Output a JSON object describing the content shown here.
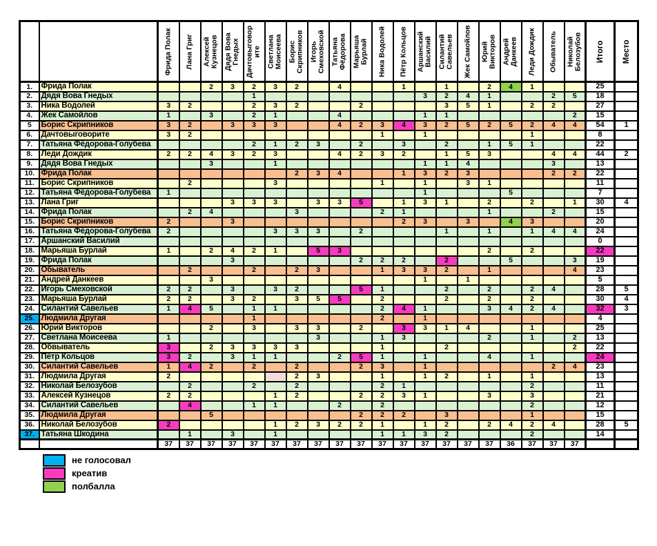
{
  "colors": {
    "row_yellow": "#ffffcc",
    "row_green": "#d9f1d2",
    "row_orange": "#fabf8f",
    "creative": "#f73bbe",
    "half_point": "#92d050",
    "no_vote": "#00b0f0",
    "pink_blank": "#f2dcdb",
    "grid": "#000000"
  },
  "columns": [
    "Фрида Полак",
    "Лана Григ",
    "Алексей Кузнецов",
    "Дядя Вова Гнедых",
    "Дачтовыговорите",
    "Светлана Моисеева",
    "Борис Скрипников",
    "Игорь Смеховской",
    "Татьяна Фёдорова",
    "Марьяша Бурлай",
    "Ника Водолей",
    "Пётр Кольцов",
    "Аршанский Василий",
    "Силантий Савельев",
    "Жек Самойлов",
    "Юрий Викторов",
    "Андрей Данкеев",
    "Леди Дождик",
    "Обыватель",
    "Николай Белозубов"
  ],
  "itogo_label": "Итого",
  "mesto_label": "Место",
  "rows": [
    {
      "num": "1.",
      "name": "Фрида Полак",
      "color": "y",
      "cells": [
        "",
        "",
        "2",
        "3",
        "2",
        "3",
        "2",
        "",
        "4",
        "",
        "",
        "1",
        "",
        "1",
        "",
        "2",
        "4",
        "1",
        "",
        ""
      ],
      "marks": {
        "16": "half"
      },
      "itogo": "25",
      "mesto": ""
    },
    {
      "num": "2.",
      "name": "Дядя Вова Гнедых",
      "color": "g",
      "cells": [
        "",
        "",
        "",
        "",
        "1",
        "",
        "",
        "",
        "",
        "",
        "",
        "",
        "3",
        "2",
        "4",
        "1",
        "",
        "",
        "2",
        "5"
      ],
      "marks": {},
      "itogo": "18",
      "mesto": ""
    },
    {
      "num": "3.",
      "name": "Ника Водолей",
      "color": "y",
      "cells": [
        "3",
        "2",
        "",
        "",
        "2",
        "3",
        "2",
        "",
        "",
        "2",
        "",
        "",
        "",
        "3",
        "5",
        "1",
        "",
        "2",
        "2",
        ""
      ],
      "marks": {},
      "itogo": "27",
      "mesto": ""
    },
    {
      "num": "4.",
      "name": "Жек Самойлов",
      "color": "g",
      "cells": [
        "1",
        "",
        "3",
        "",
        "2",
        "1",
        "",
        "",
        "4",
        "",
        "",
        "",
        "1",
        "1",
        "",
        "",
        "",
        "",
        "",
        "2"
      ],
      "marks": {},
      "itogo": "15",
      "mesto": ""
    },
    {
      "num": "5",
      "name": "Борис Скрипников",
      "color": "o",
      "cells": [
        "3",
        "2",
        "",
        "3",
        "3",
        "3",
        "",
        "",
        "4",
        "2",
        "3",
        "4",
        "3",
        "2",
        "5",
        "2",
        "5",
        "2",
        "4",
        "4"
      ],
      "marks": {
        "11": "creative"
      },
      "itogo": "54",
      "mesto": "1"
    },
    {
      "num": "6.",
      "name": "Дачтовыговорите",
      "color": "y",
      "cells": [
        "3",
        "2",
        "",
        "",
        "",
        "",
        "",
        "",
        "",
        "",
        "1",
        "",
        "1",
        "",
        "",
        "",
        "",
        "1",
        "",
        ""
      ],
      "marks": {},
      "itogo": "8",
      "mesto": ""
    },
    {
      "num": "7.",
      "name": "Татьяна Фёдорова-Голубева",
      "color": "g",
      "cells": [
        "",
        "",
        "",
        "",
        "2",
        "1",
        "2",
        "3",
        "",
        "2",
        "",
        "3",
        "",
        "2",
        "",
        "1",
        "5",
        "1",
        "",
        ""
      ],
      "marks": {},
      "itogo": "22",
      "mesto": ""
    },
    {
      "num": "8.",
      "name": "Леди Дождик",
      "color": "y",
      "cells": [
        "2",
        "2",
        "4",
        "3",
        "2",
        "3",
        "",
        "",
        "4",
        "2",
        "3",
        "2",
        "",
        "1",
        "5",
        "3",
        "",
        "",
        "4",
        "4"
      ],
      "marks": {},
      "itogo": "44",
      "mesto": "2"
    },
    {
      "num": "9.",
      "name": "Дядя Вова Гнедых",
      "color": "g",
      "cells": [
        "",
        "",
        "3",
        "",
        "",
        "1",
        "",
        "",
        "",
        "",
        "",
        "",
        "1",
        "1",
        "4",
        "",
        "",
        "",
        "3",
        ""
      ],
      "marks": {},
      "itogo": "13",
      "mesto": ""
    },
    {
      "num": "10.",
      "name": "Фрида Полак",
      "color": "o",
      "cells": [
        "",
        "",
        "",
        "",
        "",
        "",
        "2",
        "3",
        "4",
        "",
        "",
        "1",
        "3",
        "2",
        "3",
        "",
        "",
        "",
        "2",
        "2"
      ],
      "marks": {},
      "itogo": "22",
      "mesto": ""
    },
    {
      "num": "11.",
      "name": "Борис Скрипников",
      "color": "y",
      "cells": [
        "",
        "2",
        "",
        "",
        "",
        "3",
        "",
        "",
        "",
        "",
        "1",
        "",
        "1",
        "",
        "3",
        "1",
        "",
        "",
        "",
        ""
      ],
      "marks": {},
      "itogo": "11",
      "mesto": ""
    },
    {
      "num": "12.",
      "name": "Татьяна Фёдорова-Голубева",
      "color": "g",
      "cells": [
        "1",
        "",
        "",
        "",
        "",
        "",
        "",
        "",
        "",
        "",
        "",
        "",
        "1",
        "",
        "",
        "",
        "5",
        "",
        "",
        ""
      ],
      "marks": {},
      "itogo": "7",
      "mesto": ""
    },
    {
      "num": "13.",
      "name": "Лана Григ",
      "color": "y",
      "cells": [
        "",
        "",
        "",
        "3",
        "3",
        "3",
        "",
        "3",
        "3",
        "5",
        "",
        "1",
        "3",
        "1",
        "",
        "2",
        "",
        "2",
        "",
        "1"
      ],
      "marks": {
        "9": "creative"
      },
      "itogo": "30",
      "mesto": "4"
    },
    {
      "num": "14.",
      "name": "Фрида Полак",
      "color": "g",
      "cells": [
        "",
        "2",
        "4",
        "",
        "",
        "",
        "3",
        "",
        "",
        "",
        "2",
        "1",
        "",
        "",
        "",
        "1",
        "",
        "",
        "2",
        ""
      ],
      "marks": {},
      "itogo": "15",
      "mesto": ""
    },
    {
      "num": "15.",
      "name": "Борис Скрипников",
      "color": "o",
      "cells": [
        "2",
        "",
        "",
        "3",
        "",
        "",
        "",
        "",
        "",
        "",
        "",
        "2",
        "3",
        "",
        "3",
        "",
        "4",
        "3",
        "",
        ""
      ],
      "marks": {
        "16": "half"
      },
      "itogo": "20",
      "mesto": ""
    },
    {
      "num": "16.",
      "name": "Татьяна Фёдорова-Голубева",
      "color": "g",
      "cells": [
        "2",
        "",
        "",
        "",
        "",
        "3",
        "3",
        "3",
        "",
        "2",
        "",
        "",
        "",
        "1",
        "",
        "1",
        "",
        "1",
        "4",
        "4"
      ],
      "marks": {},
      "itogo": "24",
      "mesto": ""
    },
    {
      "num": "17.",
      "name": "Аршанский Василий",
      "color": "g",
      "cells": [
        "",
        "",
        "",
        "",
        "",
        "",
        "",
        "",
        "",
        "",
        "",
        "",
        "",
        "",
        "",
        "",
        "",
        "",
        "",
        ""
      ],
      "marks": {},
      "itogo": "0",
      "mesto": ""
    },
    {
      "num": "18.",
      "name": "Марьяша Бурлай",
      "color": "y",
      "cells": [
        "1",
        "",
        "2",
        "4",
        "2",
        "1",
        "",
        "5",
        "3",
        "",
        "",
        "",
        "",
        "",
        "",
        "2",
        "",
        "2",
        "",
        ""
      ],
      "marks": {
        "7": "creative",
        "8": "creative"
      },
      "itogo": "22",
      "itogo_mark": "creative",
      "mesto": ""
    },
    {
      "num": "19.",
      "name": "Фрида Полак",
      "color": "g",
      "cells": [
        "",
        "",
        "",
        "3",
        "",
        "",
        "",
        "",
        "",
        "2",
        "2",
        "2",
        "",
        "2",
        "",
        "",
        "5",
        "",
        "",
        "3"
      ],
      "marks": {
        "13": "creative"
      },
      "itogo": "19",
      "mesto": ""
    },
    {
      "num": "20.",
      "name": "Обыватель",
      "color": "o",
      "cells": [
        "",
        "2",
        "",
        "",
        "2",
        "",
        "2",
        "3",
        "",
        "",
        "1",
        "3",
        "3",
        "2",
        "",
        "1",
        "",
        "",
        "",
        "4"
      ],
      "marks": {},
      "itogo": "23",
      "mesto": ""
    },
    {
      "num": "21.",
      "name": "Андрей Данкеев",
      "color": "y",
      "cells": [
        "",
        "",
        "3",
        "",
        "",
        "",
        "",
        "",
        "",
        "",
        "",
        "",
        "1",
        "",
        "1",
        "",
        "",
        "",
        "",
        ""
      ],
      "marks": {},
      "itogo": "5",
      "mesto": ""
    },
    {
      "num": "22.",
      "name": "Игорь Смеховской",
      "color": "g",
      "cells": [
        "2",
        "2",
        "",
        "3",
        "",
        "3",
        "2",
        "",
        "",
        "5",
        "1",
        "",
        "",
        "2",
        "",
        "2",
        "",
        "2",
        "4",
        ""
      ],
      "marks": {
        "9": "creative"
      },
      "itogo": "28",
      "mesto": "5"
    },
    {
      "num": "23.",
      "name": "Марьяша Бурлай",
      "color": "y",
      "cells": [
        "2",
        "2",
        "",
        "3",
        "2",
        "",
        "3",
        "5",
        "5",
        "",
        "2",
        "",
        "",
        "2",
        "",
        "2",
        "",
        "2",
        "",
        ""
      ],
      "marks": {
        "8": "creative"
      },
      "itogo": "30",
      "mesto": "4"
    },
    {
      "num": "24.",
      "name": "Силантий Савельев",
      "color": "g",
      "cells": [
        "1",
        "4",
        "5",
        "",
        "1",
        "1",
        "",
        "",
        "",
        "",
        "2",
        "4",
        "1",
        "",
        "",
        "3",
        "4",
        "2",
        "4",
        ""
      ],
      "marks": {
        "1": "creative",
        "11": "creative"
      },
      "itogo": "32",
      "itogo_mark": "creative",
      "mesto": "3"
    },
    {
      "num": "25.",
      "name": "Людмила Другая",
      "color": "o",
      "num_bg": "cyan",
      "cells": [
        "",
        "",
        "",
        "",
        "1",
        "",
        "",
        "",
        "",
        "",
        "2",
        "",
        "1",
        "",
        "",
        "",
        "",
        "",
        "",
        ""
      ],
      "marks": {},
      "itogo": "4",
      "mesto": ""
    },
    {
      "num": "26.",
      "name": "Юрий Викторов",
      "color": "y",
      "cells": [
        "",
        "",
        "2",
        "",
        "3",
        "",
        "3",
        "3",
        "",
        "2",
        "",
        "3",
        "3",
        "1",
        "4",
        "",
        "",
        "1",
        "",
        ""
      ],
      "marks": {
        "11": "creative"
      },
      "itogo": "25",
      "mesto": ""
    },
    {
      "num": "27.",
      "name": "Светлана Моисеева",
      "color": "g",
      "cells": [
        "1",
        "",
        "",
        "",
        "",
        "",
        "",
        "3",
        "",
        "",
        "1",
        "3",
        "",
        "",
        "",
        "2",
        "",
        "1",
        "",
        "2"
      ],
      "marks": {},
      "itogo": "13",
      "mesto": ""
    },
    {
      "num": "28.",
      "name": "Обвыватель",
      "color": "y",
      "cells": [
        "3",
        "",
        "2",
        "3",
        "3",
        "3",
        "3",
        "",
        "",
        "",
        "1",
        "",
        "",
        "2",
        "",
        "",
        "",
        "",
        "",
        "2"
      ],
      "marks": {
        "0": "creative"
      },
      "itogo": "22",
      "mesto": ""
    },
    {
      "num": "29.",
      "name": "Пётр Кольцов",
      "color": "g",
      "cells": [
        "3",
        "2",
        "",
        "3",
        "1",
        "1",
        "",
        "",
        "2",
        "5",
        "1",
        "",
        "1",
        "",
        "",
        "4",
        "",
        "1",
        "",
        ""
      ],
      "marks": {
        "0": "creative",
        "9": "creative"
      },
      "itogo": "24",
      "itogo_mark": "creative",
      "mesto": ""
    },
    {
      "num": "30.",
      "name": "Силантий Савельев",
      "color": "o",
      "cells": [
        "1",
        "4",
        "2",
        "",
        "2",
        "",
        "2",
        "",
        "",
        "2",
        "3",
        "",
        "1",
        "",
        "",
        "",
        "",
        "",
        "2",
        "4"
      ],
      "marks": {
        "1": "creative"
      },
      "itogo": "23",
      "mesto": ""
    },
    {
      "num": "31.",
      "name": "Людмила Другая",
      "color": "y",
      "cells": [
        "2",
        "",
        "",
        "",
        "",
        "",
        "2",
        "3",
        "",
        "",
        "1",
        "",
        "1",
        "2",
        "",
        "1",
        "",
        "1",
        "",
        ""
      ],
      "marks": {
        "5": "pink"
      },
      "itogo": "13",
      "mesto": ""
    },
    {
      "num": "32.",
      "name": "Николай Белозубов",
      "color": "g",
      "cells": [
        "",
        "2",
        "",
        "",
        "2",
        "",
        "2",
        "",
        "",
        "",
        "2",
        "1",
        "",
        "",
        "",
        "",
        "",
        "2",
        "",
        ""
      ],
      "marks": {},
      "itogo": "11",
      "mesto": ""
    },
    {
      "num": "33.",
      "name": "Алексей Кузнецов",
      "color": "y",
      "cells": [
        "2",
        "2",
        "",
        "",
        "",
        "1",
        "2",
        "",
        "",
        "2",
        "2",
        "3",
        "1",
        "",
        "",
        "3",
        "",
        "3",
        "",
        ""
      ],
      "marks": {},
      "itogo": "21",
      "mesto": ""
    },
    {
      "num": "34.",
      "name": "Силантий Савельев",
      "color": "g",
      "cells": [
        "",
        "4",
        "",
        "",
        "1",
        "1",
        "",
        "",
        "2",
        "",
        "2",
        "",
        "",
        "",
        "",
        "",
        "",
        "2",
        "",
        ""
      ],
      "marks": {
        "1": "creative"
      },
      "itogo": "12",
      "mesto": ""
    },
    {
      "num": "35.",
      "name": "Людмила Другая",
      "color": "o",
      "cells": [
        "",
        "",
        "5",
        "",
        "",
        "",
        "",
        "",
        "",
        "2",
        "2",
        "2",
        "",
        "3",
        "",
        "",
        "",
        "1",
        "",
        ""
      ],
      "marks": {},
      "itogo": "15",
      "mesto": ""
    },
    {
      "num": "36.",
      "name": "Николай Белозубов",
      "color": "y",
      "cells": [
        "2",
        "",
        "",
        "",
        "",
        "1",
        "2",
        "3",
        "2",
        "2",
        "1",
        "",
        "1",
        "2",
        "",
        "2",
        "4",
        "2",
        "4",
        ""
      ],
      "marks": {
        "0": "creative"
      },
      "itogo": "28",
      "mesto": "5"
    },
    {
      "num": "37.",
      "name": "Татьяна Шкодина",
      "color": "g",
      "num_bg": "cyan",
      "cells": [
        "",
        "1",
        "",
        "3",
        "",
        "1",
        "",
        "",
        "",
        "",
        "1",
        "1",
        "3",
        "2",
        "",
        "",
        "",
        "2",
        "",
        ""
      ],
      "marks": {},
      "itogo": "14",
      "mesto": ""
    }
  ],
  "totals": [
    "37",
    "37",
    "37",
    "37",
    "37",
    "37",
    "37",
    "37",
    "37",
    "37",
    "37",
    "37",
    "37",
    "37",
    "37",
    "37",
    "36",
    "37",
    "37",
    "37"
  ],
  "legend": [
    {
      "label": "не голосовал",
      "color": "#00b0f0"
    },
    {
      "label": "креатив",
      "color": "#f73bbe"
    },
    {
      "label": "полбалла",
      "color": "#92d050"
    }
  ]
}
